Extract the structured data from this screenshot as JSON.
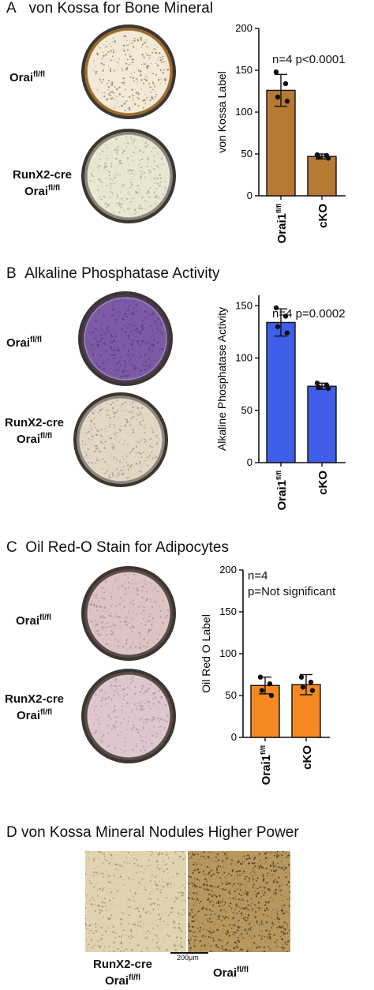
{
  "panels": [
    {
      "letter": "A",
      "title": "von Kossa for Bone Mineral",
      "label_top": {
        "main": "Orai",
        "sup": "fl/fl"
      },
      "label_bottom_line1": "RunX2-cre",
      "label_bottom_line2": {
        "main": "Orai",
        "sup": "fl/fl"
      },
      "stat_line1": "n=4  p<0.0001",
      "stat_line2": "",
      "dish_top": {
        "fill": "#f2ead6",
        "edge": "#9c6a2c",
        "speckle": "#6a4a2a"
      },
      "dish_bottom": {
        "fill": "#e9e6d2",
        "edge": "#8a8576",
        "speckle": "#8e8a7a"
      }
    },
    {
      "letter": "B",
      "title": "Alkaline Phosphatase Activity",
      "label_top": {
        "main": "Orai",
        "sup": "fl/fl"
      },
      "label_bottom_line1": "RunX2-cre",
      "label_bottom_line2": {
        "main": "Orai",
        "sup": "fl/fl"
      },
      "stat_line1": "n=4  p=0.0002",
      "stat_line2": "",
      "dish_top": {
        "fill": "#7c5aa6",
        "edge": "#4a3a56",
        "speckle": "#3e2a66"
      },
      "dish_bottom": {
        "fill": "#e2d7c2",
        "edge": "#8d8678",
        "speckle": "#7f6d8e"
      }
    },
    {
      "letter": "C",
      "title": "Oil Red-O Stain for Adipocytes",
      "label_top": {
        "main": "Orai",
        "sup": "fl/fl"
      },
      "label_bottom_line1": "RunX2-cre",
      "label_bottom_line2": {
        "main": "Orai",
        "sup": "fl/fl"
      },
      "stat_line1": "n=4",
      "stat_line2": "p=Not significant",
      "dish_top": {
        "fill": "#dcc4c4",
        "edge": "#5c4a44",
        "speckle": "#9a7676"
      },
      "dish_bottom": {
        "fill": "#ddc6cd",
        "edge": "#5c4a44",
        "speckle": "#a07888"
      }
    }
  ],
  "chart_data": [
    {
      "type": "bar",
      "ylabel": "von Kossa Label",
      "categories": [
        "Orai1",
        "cKO"
      ],
      "category_sup": [
        "fl/fl",
        ""
      ],
      "values": [
        126,
        47
      ],
      "errors": [
        19,
        3
      ],
      "points": [
        [
          148,
          134,
          118,
          113
        ],
        [
          49,
          48,
          46,
          45
        ]
      ],
      "ylim": [
        0,
        200
      ],
      "yticks": [
        0,
        50,
        100,
        150,
        200
      ],
      "color": "#b67a35"
    },
    {
      "type": "bar",
      "ylabel": "Alkaline Phosphatase Activity",
      "categories": [
        "Orai1",
        "cKO"
      ],
      "category_sup": [
        "fl/fl",
        ""
      ],
      "values": [
        134,
        73
      ],
      "errors": [
        13,
        3
      ],
      "points": [
        [
          148,
          140,
          130,
          124
        ],
        [
          76,
          74,
          72,
          71
        ]
      ],
      "ylim": [
        0,
        160
      ],
      "yticks": [
        0,
        50,
        100,
        150
      ],
      "color": "#3f5fe8"
    },
    {
      "type": "bar",
      "ylabel": "Oil Red O Label",
      "categories": [
        "Orai1",
        "cKO"
      ],
      "category_sup": [
        "fl/fl",
        ""
      ],
      "values": [
        62,
        63
      ],
      "errors": [
        10,
        12
      ],
      "points": [
        [
          72,
          64,
          56,
          50
        ],
        [
          72,
          66,
          60,
          56
        ]
      ],
      "ylim": [
        0,
        200
      ],
      "yticks": [
        0,
        50,
        100,
        150,
        200
      ],
      "color": "#f58a23"
    }
  ],
  "panel_d": {
    "letter": "D",
    "title": "von Kossa Mineral Nodules Higher Power",
    "left_label_line1": "RunX2-cre",
    "left_label_line2": {
      "main": "Orai",
      "sup": "fl/fl"
    },
    "right_label": {
      "main": "Orai",
      "sup": "fl/fl"
    },
    "scale_bar_label": "200μm",
    "left_image": {
      "fill": "#e0d3b0",
      "speckle": "#8c7c5c"
    },
    "right_image": {
      "fill": "#b7975e",
      "speckle": "#2c2418"
    }
  }
}
